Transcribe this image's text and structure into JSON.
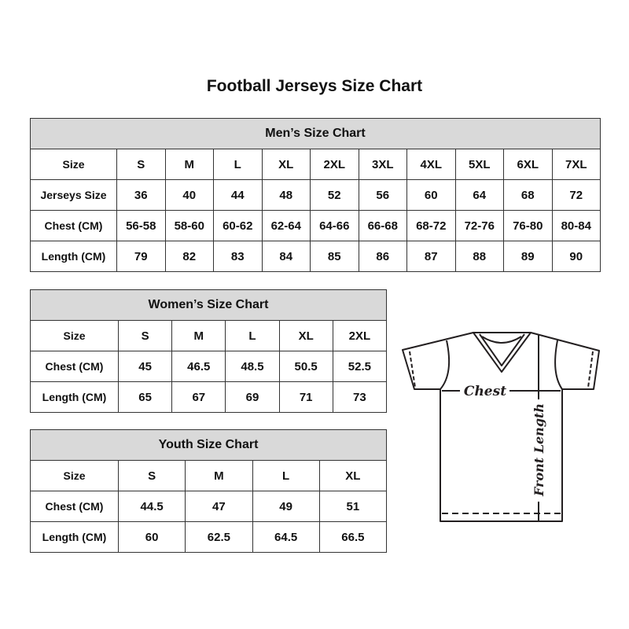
{
  "title": "Football Jerseys Size Chart",
  "men": {
    "heading": "Men’s Size Chart",
    "rows": [
      {
        "label": "Size",
        "values": [
          "S",
          "M",
          "L",
          "XL",
          "2XL",
          "3XL",
          "4XL",
          "5XL",
          "6XL",
          "7XL"
        ]
      },
      {
        "label": "Jerseys Size",
        "values": [
          "36",
          "40",
          "44",
          "48",
          "52",
          "56",
          "60",
          "64",
          "68",
          "72"
        ]
      },
      {
        "label": "Chest (CM)",
        "values": [
          "56-58",
          "58-60",
          "60-62",
          "62-64",
          "64-66",
          "66-68",
          "68-72",
          "72-76",
          "76-80",
          "80-84"
        ]
      },
      {
        "label": "Length (CM)",
        "values": [
          "79",
          "82",
          "83",
          "84",
          "85",
          "86",
          "87",
          "88",
          "89",
          "90"
        ]
      }
    ]
  },
  "women": {
    "heading": "Women’s Size Chart",
    "rows": [
      {
        "label": "Size",
        "values": [
          "S",
          "M",
          "L",
          "XL",
          "2XL"
        ]
      },
      {
        "label": "Chest (CM)",
        "values": [
          "45",
          "46.5",
          "48.5",
          "50.5",
          "52.5"
        ]
      },
      {
        "label": "Length (CM)",
        "values": [
          "65",
          "67",
          "69",
          "71",
          "73"
        ]
      }
    ]
  },
  "youth": {
    "heading": "Youth Size Chart",
    "rows": [
      {
        "label": "Size",
        "values": [
          "S",
          "M",
          "L",
          "XL"
        ]
      },
      {
        "label": "Chest (CM)",
        "values": [
          "44.5",
          "47",
          "49",
          "51"
        ]
      },
      {
        "label": "Length (CM)",
        "values": [
          "60",
          "62.5",
          "64.5",
          "66.5"
        ]
      }
    ]
  },
  "diagram": {
    "chest_label": "Chest",
    "length_label": "Front Length"
  },
  "colors": {
    "header_bg": "#d9d9d9",
    "border": "#333333"
  }
}
